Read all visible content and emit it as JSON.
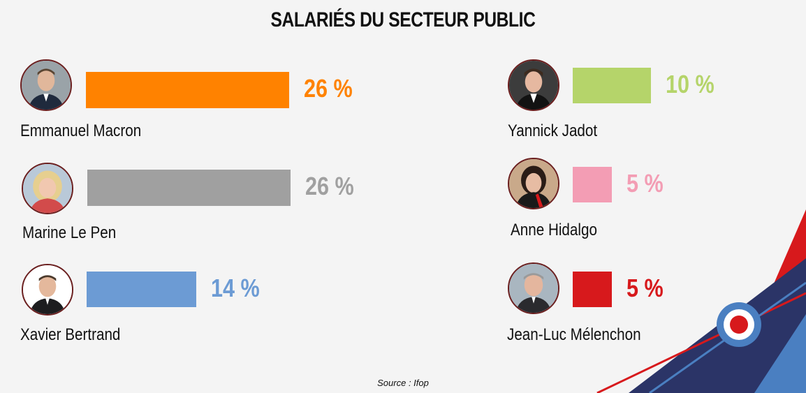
{
  "chart_data": {
    "type": "bar",
    "title": "SALARIÉS DU SECTEUR PUBLIC",
    "categories": [
      "Emmanuel Macron",
      "Marine Le Pen",
      "Xavier Bertrand",
      "Yannick Jadot",
      "Anne Hidalgo",
      "Jean-Luc Mélenchon"
    ],
    "values": [
      26,
      26,
      14,
      10,
      5,
      5
    ],
    "value_labels": [
      "26 %",
      "26 %",
      "14 %",
      "10 %",
      "5 %",
      "5 %"
    ],
    "colors": [
      "#ff8200",
      "#a0a0a0",
      "#6c9bd4",
      "#b5d46a",
      "#f39db4",
      "#d7191c"
    ],
    "unit": "%",
    "xlabel": "",
    "ylabel": "",
    "source": "Source :  Ifop"
  },
  "avatar_icons": [
    "macron-portrait",
    "le-pen-portrait",
    "bertrand-portrait",
    "jadot-portrait",
    "hidalgo-portrait",
    "melenchon-portrait"
  ],
  "accent_colors": {
    "navy": "#2b3467",
    "red": "#d7191c",
    "blue": "#4a7fc1"
  }
}
